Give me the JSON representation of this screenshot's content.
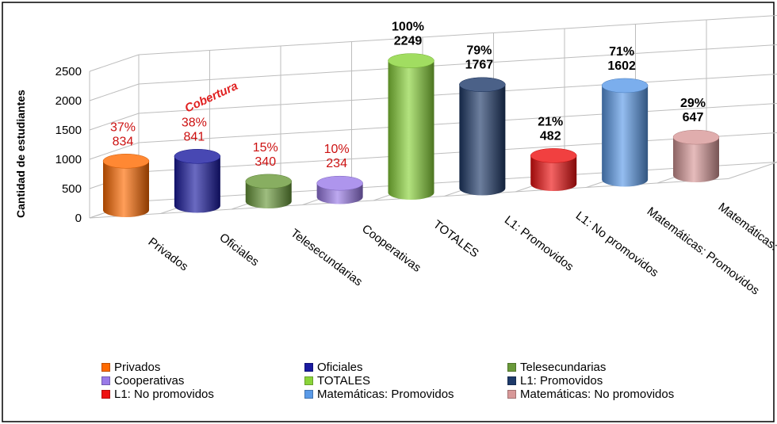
{
  "chart_data": {
    "type": "bar",
    "style": "3d-cylinder",
    "ylabel": "Cantidad de estudiantes",
    "yticks": [
      0,
      500,
      1000,
      1500,
      2000,
      2500
    ],
    "ylim": [
      0,
      2500
    ],
    "grid": true,
    "annotation": "Cobertura",
    "categories": [
      "Privados",
      "Oficiales",
      "Telesecundarias",
      "Cooperativas",
      "TOTALES",
      "L1: Promovidos",
      "L1: No promovidos",
      "Matemáticas: Promovidos",
      "Matemáticas: No promovidos"
    ],
    "values": [
      834,
      841,
      340,
      234,
      2249,
      1767,
      482,
      1602,
      647
    ],
    "percents": [
      "37%",
      "38%",
      "15%",
      "10%",
      "100%",
      "79%",
      "21%",
      "71%",
      "29%"
    ],
    "label_colors": [
      "#cc1111",
      "#cc1111",
      "#cc1111",
      "#cc1111",
      "#000000",
      "#000000",
      "#000000",
      "#000000",
      "#000000"
    ],
    "colors": [
      "#ff6a00",
      "#1a1aa0",
      "#6a9a3a",
      "#9a7ae8",
      "#8ad43a",
      "#1e3a6a",
      "#ee1010",
      "#5a9ae8",
      "#d89898"
    ],
    "legend_position": "bottom",
    "legend": [
      "Privados",
      "Oficiales",
      "Telesecundarias",
      "Cooperativas",
      "TOTALES",
      "L1: Promovidos",
      "L1: No promovidos",
      "Matemáticas: Promovidos",
      "Matemáticas: No promovidos"
    ]
  }
}
